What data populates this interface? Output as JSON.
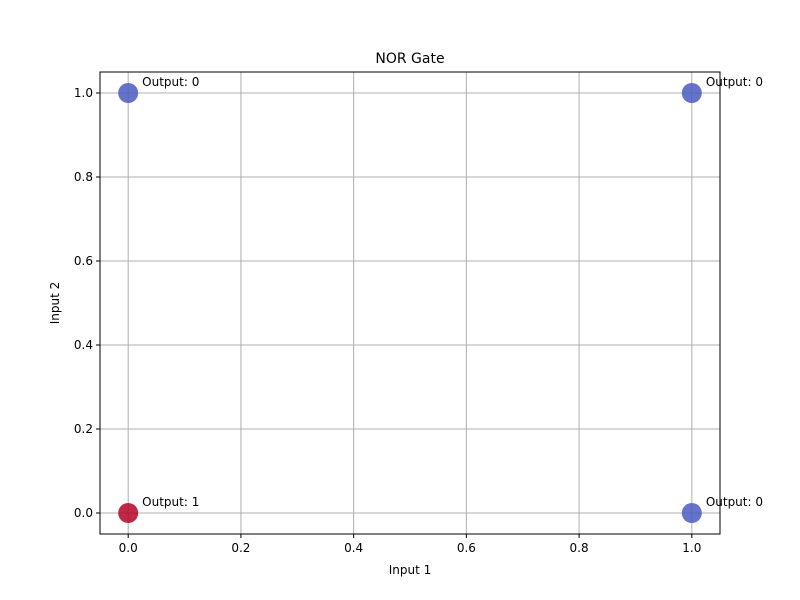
{
  "chart_data": {
    "type": "scatter",
    "title": "NOR Gate",
    "xlabel": "Input 1",
    "ylabel": "Input 2",
    "xlim": [
      -0.05,
      1.05
    ],
    "ylim": [
      -0.05,
      1.05
    ],
    "xticks": [
      0.0,
      0.2,
      0.4,
      0.6,
      0.8,
      1.0
    ],
    "yticks": [
      0.0,
      0.2,
      0.4,
      0.6,
      0.8,
      1.0
    ],
    "xtick_labels": [
      "0.0",
      "0.2",
      "0.4",
      "0.6",
      "0.8",
      "1.0"
    ],
    "ytick_labels": [
      "0.0",
      "0.2",
      "0.4",
      "0.6",
      "0.8",
      "1.0"
    ],
    "grid": true,
    "points": [
      {
        "x": 0,
        "y": 0,
        "output": 1,
        "label": "Output: 1"
      },
      {
        "x": 0,
        "y": 1,
        "output": 0,
        "label": "Output: 0"
      },
      {
        "x": 1,
        "y": 0,
        "output": 0,
        "label": "Output: 0"
      },
      {
        "x": 1,
        "y": 1,
        "output": 0,
        "label": "Output: 0"
      }
    ],
    "colors": {
      "output_0": "#4a5ac0",
      "output_1": "#b40426",
      "grid": "#b0b0b0",
      "axes": "#000000"
    }
  }
}
